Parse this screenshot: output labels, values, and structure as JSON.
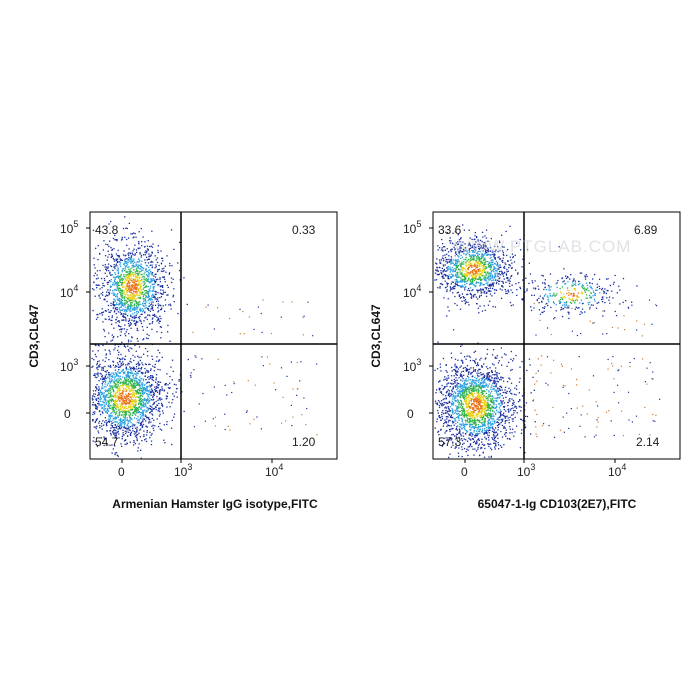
{
  "chart_data": [
    {
      "type": "scatter",
      "subtype": "flow-cytometry-density-dot-plot",
      "xlabel": "Armenian Hamster IgG isotype,FITC",
      "ylabel": "CD3,CL647",
      "x_scale": "biexponential",
      "y_scale": "biexponential",
      "x_tick_labels": [
        "0",
        "10^3",
        "10^4"
      ],
      "y_tick_labels": [
        "0",
        "10^3",
        "10^4",
        "10^5"
      ],
      "quadrants": {
        "upper_left": "43.8",
        "upper_right": "0.33",
        "lower_left": "54.7",
        "lower_right": "1.20"
      },
      "watermark": ""
    },
    {
      "type": "scatter",
      "subtype": "flow-cytometry-density-dot-plot",
      "xlabel": "65047-1-Ig CD103(2E7),FITC",
      "ylabel": "CD3,CL647",
      "x_scale": "biexponential",
      "y_scale": "biexponential",
      "x_tick_labels": [
        "0",
        "10^3",
        "10^4"
      ],
      "y_tick_labels": [
        "0",
        "10^3",
        "10^4",
        "10^5"
      ],
      "quadrants": {
        "upper_left": "33.6",
        "upper_right": "6.89",
        "lower_left": "57.3",
        "lower_right": "2.14"
      },
      "watermark": "WWW.PTGLAB.COM"
    }
  ],
  "colors": {
    "density_low": "#1a2fa0",
    "density_mid_low": "#2aa0e0",
    "density_mid": "#2db34a",
    "density_mid_high": "#e8d21a",
    "density_high": "#e8741a",
    "sparse_events": "#c77b2c",
    "gate_lines": "#000000"
  }
}
